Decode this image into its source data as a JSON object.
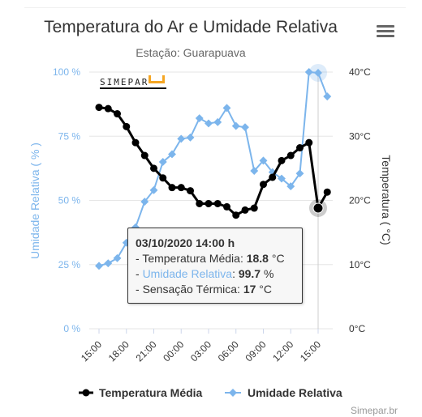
{
  "header": {
    "title": "Temperatura do Ar e Umidade Relativa",
    "subtitle": "Estação: Guarapuava"
  },
  "logo_text": "SIMEPAR",
  "credits": "Simepar.br",
  "colors": {
    "temperature": "#000000",
    "humidity": "#7cb5ec",
    "grid": "#e6e6e6",
    "logo_accent": "#f5a623"
  },
  "chart_data": {
    "type": "line",
    "title": "Temperatura do Ar e Umidade Relativa",
    "subtitle": "Estação: Guarapuava",
    "x_labels": [
      "15:00",
      "18:00",
      "21:00",
      "00:00",
      "03:00",
      "06:00",
      "09:00",
      "12:00",
      "15:00"
    ],
    "x_label_hours": [
      0,
      3,
      6,
      9,
      12,
      15,
      18,
      21,
      24
    ],
    "y_left": {
      "label": "Umidade Relativa ( % )",
      "ticks": [
        "0 %",
        "25 %",
        "50 %",
        "75 %",
        "100 %"
      ],
      "range": [
        0,
        100
      ]
    },
    "y_right": {
      "label": "Temperatura ( °C)",
      "ticks": [
        "0°C",
        "10°C",
        "20°C",
        "30°C",
        "40°C"
      ],
      "range": [
        0,
        40
      ]
    },
    "series": [
      {
        "name": "Umidade Relativa",
        "axis": "left",
        "unit": "%",
        "hours": [
          0,
          1,
          2,
          3,
          4,
          5,
          6,
          7,
          8,
          9,
          10,
          11,
          12,
          13,
          14,
          15,
          16,
          17,
          18,
          19,
          20,
          21,
          22,
          23,
          24,
          25
        ],
        "values": [
          24.5,
          25.5,
          27.5,
          33.5,
          39.5,
          49.5,
          54,
          65,
          68,
          74,
          74.5,
          82,
          80,
          80.5,
          86,
          79,
          78.5,
          61.5,
          65.5,
          61,
          58.5,
          55.5,
          60.5,
          100,
          99.7,
          90.5
        ]
      },
      {
        "name": "Temperatura Média",
        "axis": "right",
        "unit": "°C",
        "hours": [
          0,
          1,
          2,
          3,
          4,
          5,
          6,
          7,
          8,
          9,
          10,
          11,
          12,
          13,
          14,
          15,
          16,
          17,
          18,
          19,
          20,
          21,
          22,
          23,
          24,
          25
        ],
        "values": [
          34.5,
          34.3,
          33.5,
          31.5,
          29,
          27,
          25,
          23.5,
          22,
          22,
          21.5,
          19.5,
          19.5,
          19.5,
          19,
          17.7,
          18.5,
          18.8,
          22.5,
          23.6,
          26.2,
          27,
          28.2,
          29,
          18.8,
          21.3
        ]
      }
    ],
    "tooltip": {
      "title": "03/10/2020 14:00 h",
      "rows": [
        {
          "label": "Temperatura Média",
          "value": "18.8",
          "unit": "°C"
        },
        {
          "label": "Umidade Relativa",
          "value": "99.7",
          "unit": "%"
        },
        {
          "label": "Sensação Térmica",
          "value": "17",
          "unit": "°C"
        }
      ]
    },
    "grid": true,
    "legend": {
      "position": "bottom",
      "items": [
        "Temperatura Média",
        "Umidade Relativa"
      ]
    }
  }
}
